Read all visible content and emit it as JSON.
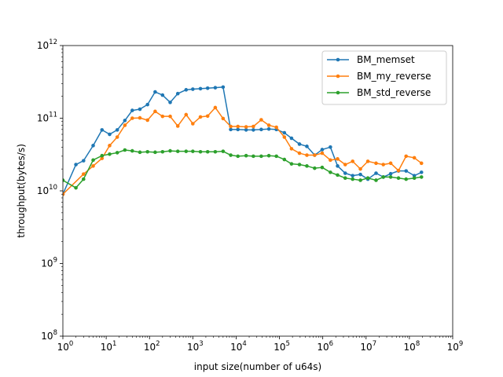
{
  "chart_data": {
    "type": "line",
    "xlabel": "input size(number of u64s)",
    "ylabel": "throughput(bytes/s)",
    "x_scale": "log",
    "y_scale": "log",
    "xlim": [
      1,
      1000000000
    ],
    "ylim": [
      100000000,
      1000000000000
    ],
    "x_ticks": [
      {
        "base": "10",
        "exp": "0"
      },
      {
        "base": "10",
        "exp": "1"
      },
      {
        "base": "10",
        "exp": "2"
      },
      {
        "base": "10",
        "exp": "3"
      },
      {
        "base": "10",
        "exp": "4"
      },
      {
        "base": "10",
        "exp": "5"
      },
      {
        "base": "10",
        "exp": "6"
      },
      {
        "base": "10",
        "exp": "7"
      },
      {
        "base": "10",
        "exp": "8"
      },
      {
        "base": "10",
        "exp": "9"
      }
    ],
    "y_ticks": [
      {
        "base": "10",
        "exp": "8"
      },
      {
        "base": "10",
        "exp": "9"
      },
      {
        "base": "10",
        "exp": "10"
      },
      {
        "base": "10",
        "exp": "11"
      },
      {
        "base": "10",
        "exp": "12"
      }
    ],
    "grid": false,
    "legend_position": "top-right",
    "series": [
      {
        "name": "BM_memset",
        "color": "#1f77b4",
        "x": [
          1,
          2,
          3,
          5,
          8,
          12,
          18,
          27,
          40,
          60,
          90,
          135,
          200,
          300,
          450,
          700,
          1000,
          1500,
          2200,
          3300,
          5000,
          7500,
          11000,
          17000,
          25000,
          38000,
          57000,
          85000,
          130000,
          190000,
          290000,
          430000,
          650000,
          970000,
          1500000,
          2200000,
          3300000,
          4900000,
          7400000,
          11000000,
          17000000,
          25000000,
          37000000,
          56000000,
          84000000,
          130000000,
          190000000
        ],
        "values": [
          9000000000,
          23000000000,
          26000000000,
          42000000000,
          69000000000,
          60000000000,
          69000000000,
          93000000000,
          128000000000,
          133000000000,
          154000000000,
          230000000000,
          208000000000,
          165000000000,
          218000000000,
          246000000000,
          251000000000,
          255000000000,
          259000000000,
          263000000000,
          268000000000,
          70000000000,
          70000000000,
          69000000000,
          69000000000,
          70000000000,
          71000000000,
          70000000000,
          63000000000,
          53000000000,
          44000000000,
          41000000000,
          31000000000,
          37000000000,
          40000000000,
          22000000000,
          17500000000,
          16200000000,
          16800000000,
          14500000000,
          17500000000,
          15500000000,
          17200000000,
          18800000000,
          18800000000,
          16200000000,
          18000000000
        ]
      },
      {
        "name": "BM_my_reverse",
        "color": "#ff7f0e",
        "x": [
          1,
          3,
          5,
          8,
          12,
          18,
          27,
          40,
          60,
          90,
          135,
          200,
          300,
          450,
          700,
          1000,
          1500,
          2200,
          3300,
          5000,
          7500,
          11000,
          17000,
          25000,
          38000,
          57000,
          85000,
          130000,
          190000,
          290000,
          430000,
          650000,
          970000,
          1500000,
          2200000,
          3300000,
          4900000,
          7400000,
          11000000,
          17000000,
          25000000,
          37000000,
          56000000,
          84000000,
          130000000,
          190000000
        ],
        "values": [
          9000000000,
          17000000000,
          22000000000,
          28000000000,
          42000000000,
          55000000000,
          80000000000,
          100000000000,
          101000000000,
          94000000000,
          124000000000,
          106000000000,
          106000000000,
          78000000000,
          112000000000,
          84000000000,
          104000000000,
          107000000000,
          140000000000,
          99000000000,
          77000000000,
          77000000000,
          76000000000,
          77000000000,
          95000000000,
          80000000000,
          75000000000,
          55000000000,
          38000000000,
          33000000000,
          31000000000,
          31000000000,
          33000000000,
          26500000000,
          27500000000,
          23000000000,
          25500000000,
          20000000000,
          25500000000,
          24000000000,
          23000000000,
          24000000000,
          19000000000,
          30000000000,
          28500000000,
          24000000000
        ]
      },
      {
        "name": "BM_std_reverse",
        "color": "#2ca02c",
        "x": [
          1,
          2,
          3,
          5,
          8,
          12,
          18,
          27,
          40,
          60,
          90,
          135,
          200,
          300,
          450,
          700,
          1000,
          1500,
          2200,
          3300,
          5000,
          7500,
          11000,
          17000,
          25000,
          38000,
          57000,
          85000,
          130000,
          190000,
          290000,
          430000,
          650000,
          970000,
          1500000,
          2200000,
          3300000,
          4900000,
          7400000,
          11000000,
          17000000,
          25000000,
          37000000,
          56000000,
          84000000,
          130000000,
          190000000
        ],
        "values": [
          14000000000,
          11000000000,
          14500000000,
          26500000000,
          30500000000,
          32000000000,
          33500000000,
          36500000000,
          35500000000,
          34000000000,
          34500000000,
          34000000000,
          34500000000,
          35500000000,
          35000000000,
          35000000000,
          35000000000,
          34500000000,
          34500000000,
          34500000000,
          35000000000,
          31000000000,
          30000000000,
          30500000000,
          30000000000,
          30000000000,
          30500000000,
          30000000000,
          27000000000,
          23500000000,
          23000000000,
          22000000000,
          20500000000,
          21000000000,
          18000000000,
          16500000000,
          15000000000,
          14500000000,
          14000000000,
          15000000000,
          14000000000,
          15500000000,
          15500000000,
          15000000000,
          14500000000,
          15000000000,
          15500000000
        ]
      }
    ]
  }
}
